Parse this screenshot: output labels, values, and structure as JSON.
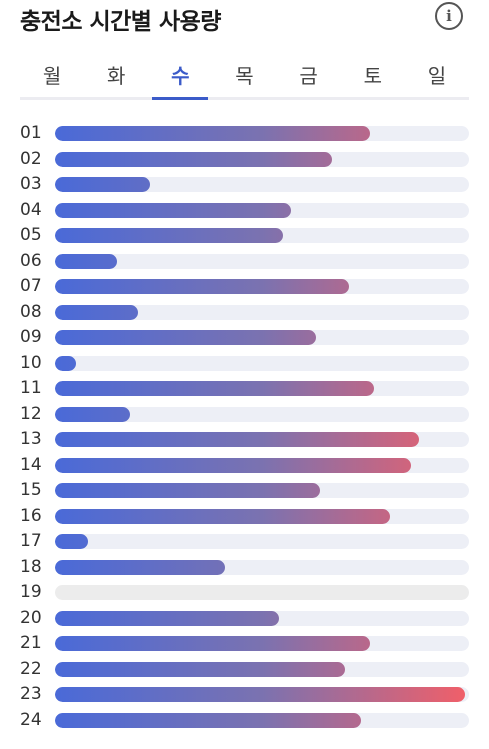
{
  "header": {
    "title": "충전소 시간별 사용량",
    "info_icon": "info-icon",
    "info_glyph": "i"
  },
  "tabs": [
    {
      "label": "월",
      "active": false
    },
    {
      "label": "화",
      "active": false
    },
    {
      "label": "수",
      "active": true
    },
    {
      "label": "목",
      "active": false
    },
    {
      "label": "금",
      "active": false
    },
    {
      "label": "토",
      "active": false
    },
    {
      "label": "일",
      "active": false
    }
  ],
  "colors": {
    "accent": "#3b5bc9",
    "bar_start": "#4a6ad8",
    "bar_end": "#f25f68",
    "track": "#edeff6"
  },
  "chart_data": {
    "type": "bar",
    "orientation": "horizontal",
    "categories": [
      "01",
      "02",
      "03",
      "04",
      "05",
      "06",
      "07",
      "08",
      "09",
      "10",
      "11",
      "12",
      "13",
      "14",
      "15",
      "16",
      "17",
      "18",
      "19",
      "20",
      "21",
      "22",
      "23",
      "24"
    ],
    "values": [
      0.76,
      0.67,
      0.23,
      0.57,
      0.55,
      0.15,
      0.71,
      0.2,
      0.63,
      0.05,
      0.77,
      0.18,
      0.88,
      0.86,
      0.64,
      0.81,
      0.08,
      0.41,
      0.0,
      0.54,
      0.76,
      0.7,
      0.99,
      0.74
    ],
    "value_scale": "fraction of maximum"
  }
}
